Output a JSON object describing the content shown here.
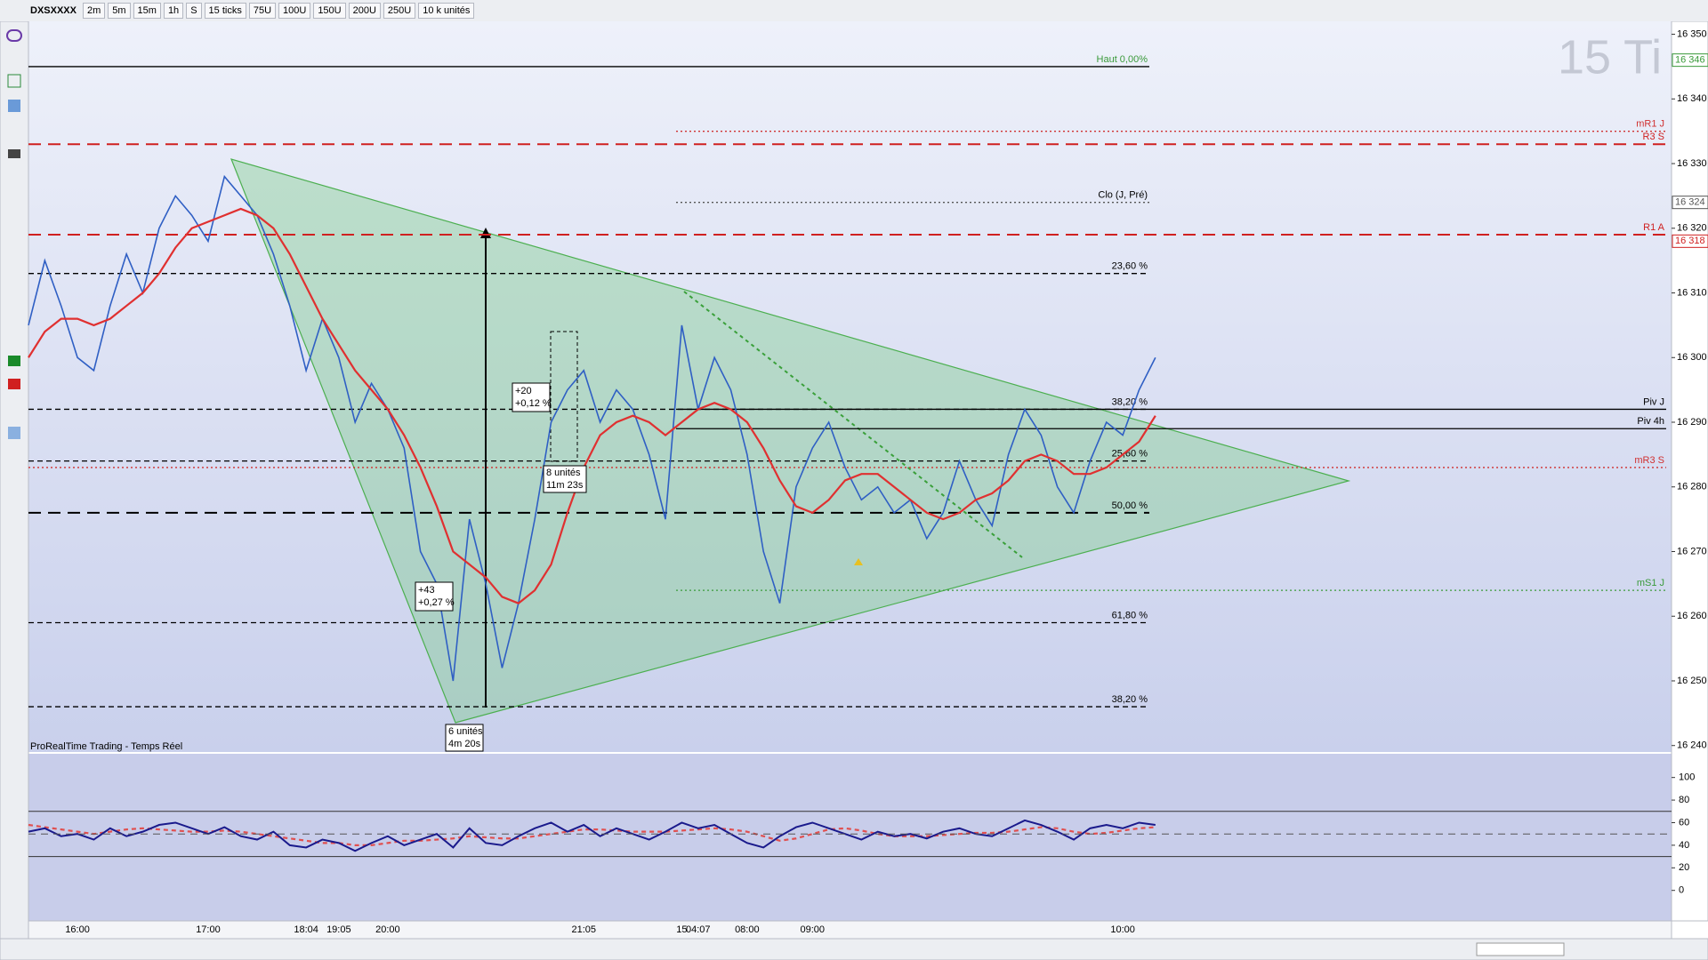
{
  "toolbar": {
    "symbol": "DXSXXXX",
    "timeframes": [
      "2m",
      "5m",
      "15m",
      "1h",
      "S"
    ],
    "ticks": "15 ticks",
    "units": [
      "75U",
      "100U",
      "150U",
      "200U",
      "250U"
    ],
    "volume": "10 k unités"
  },
  "chart_data": {
    "type": "line",
    "watermark": "15 Ti",
    "source": "ProRealTime Trading - Temps Réel",
    "categories": [
      null,
      null,
      null,
      "16:00",
      null,
      null,
      null,
      null,
      null,
      null,
      null,
      "17:00",
      null,
      null,
      null,
      null,
      null,
      "18:04",
      null,
      "19:05",
      null,
      null,
      "20:00",
      null,
      null,
      null,
      null,
      null,
      null,
      null,
      null,
      null,
      null,
      null,
      "21:05",
      null,
      null,
      null,
      null,
      null,
      "15",
      "04:07",
      null,
      null,
      "08:00",
      null,
      null,
      null,
      "09:00",
      null,
      null,
      null,
      null,
      null,
      null,
      null,
      null,
      null,
      null,
      null,
      null,
      null,
      null,
      null,
      null,
      null,
      null,
      "10:00",
      null,
      null
    ],
    "series": [
      {
        "color": "#2f5fc4",
        "values": [
          16305,
          16315,
          16308,
          16300,
          16298,
          16308,
          16316,
          16310,
          16320,
          16325,
          16322,
          16318,
          16328,
          16325,
          16322,
          16316,
          16308,
          16298,
          16306,
          16300,
          16290,
          16296,
          16292,
          16286,
          16270,
          16265,
          16250,
          16275,
          16265,
          16252,
          16262,
          16275,
          16290,
          16295,
          16298,
          16290,
          16295,
          16292,
          16285,
          16275,
          16305,
          16292,
          16300,
          16295,
          16285,
          16270,
          16262,
          16280,
          16286,
          16290,
          16283,
          16278,
          16280,
          16276,
          16278,
          16272,
          16276,
          16284,
          16278,
          16274,
          16285,
          16292,
          16288,
          16280,
          16276,
          16284,
          16290,
          16288,
          16295,
          16300
        ]
      },
      {
        "color": "#e03030",
        "values": [
          16300,
          16304,
          16306,
          16306,
          16305,
          16306,
          16308,
          16310,
          16313,
          16317,
          16320,
          16321,
          16322,
          16323,
          16322,
          16320,
          16316,
          16311,
          16306,
          16302,
          16298,
          16295,
          16292,
          16288,
          16283,
          16277,
          16270,
          16268,
          16266,
          16263,
          16262,
          16264,
          16268,
          16276,
          16283,
          16288,
          16290,
          16291,
          16290,
          16288,
          16290,
          16292,
          16293,
          16292,
          16290,
          16286,
          16281,
          16277,
          16276,
          16278,
          16281,
          16282,
          16282,
          16280,
          16278,
          16276,
          16275,
          16276,
          16278,
          16279,
          16281,
          16284,
          16285,
          16284,
          16282,
          16282,
          16283,
          16285,
          16287,
          16291
        ]
      }
    ],
    "ylim": [
      16239,
      16352
    ],
    "yticks": [
      {
        "value": 16350,
        "label": "16 350"
      },
      {
        "value": 16340,
        "label": "16 340"
      },
      {
        "value": 16330,
        "label": "16 330"
      },
      {
        "value": 16320,
        "label": "16 320"
      },
      {
        "value": 16310,
        "label": "16 310"
      },
      {
        "value": 16300,
        "label": "16 300"
      },
      {
        "value": 16290,
        "label": "16 290"
      },
      {
        "value": 16280,
        "label": "16 280"
      },
      {
        "value": 16270,
        "label": "16 270"
      },
      {
        "value": 16260,
        "label": "16 260"
      },
      {
        "value": 16250,
        "label": "16 250"
      },
      {
        "value": 16240,
        "label": "16 240"
      }
    ],
    "levels": [
      {
        "label": "Haut 0,00%",
        "value": 16345,
        "color": "#000000",
        "label_color": "#3a9a3a",
        "style": "solid",
        "kind": "fib"
      },
      {
        "label": "23,60 %",
        "value": 16313,
        "color": "#000000",
        "label_color": "#000000",
        "style": "dashed",
        "kind": "fib"
      },
      {
        "label": "38,20 %",
        "value": 16292,
        "color": "#000000",
        "label_color": "#000000",
        "style": "dashed",
        "kind": "fib"
      },
      {
        "label": "25,60 %",
        "value": 16284,
        "color": "#000000",
        "label_color": "#000000",
        "style": "dashed",
        "kind": "fib"
      },
      {
        "label": "50,00 %",
        "value": 16276,
        "color": "#000000",
        "label_color": "#000000",
        "style": "long-dashed",
        "kind": "fib"
      },
      {
        "label": "61,80 %",
        "value": 16259,
        "color": "#000000",
        "label_color": "#000000",
        "style": "dashed",
        "kind": "fib"
      },
      {
        "label": "38,20 %",
        "value": 16246,
        "color": "#000000",
        "label_color": "#000000",
        "style": "dashed",
        "kind": "fib"
      },
      {
        "label": "Clo (J, Pré)",
        "value": 16324,
        "color": "#555555",
        "label_color": "#000000",
        "style": "dotted",
        "kind": "session"
      },
      {
        "label": "mR1 J",
        "value": 16335,
        "color": "#d03030",
        "label_color": "#d03030",
        "style": "dotted",
        "kind": "pivot"
      },
      {
        "label": "R3 S",
        "value": 16333,
        "color": "#d02020",
        "label_color": "#d02020",
        "style": "long-dashed",
        "kind": "band"
      },
      {
        "label": "R1 A",
        "value": 16319,
        "color": "#d02020",
        "label_color": "#d02020",
        "style": "long-dashed",
        "kind": "band"
      },
      {
        "label": "Piv J",
        "value": 16292,
        "color": "#000000",
        "label_color": "#000000",
        "style": "solid",
        "kind": "pivot"
      },
      {
        "label": "Piv 4h",
        "value": 16289,
        "color": "#000000",
        "label_color": "#000000",
        "style": "solid",
        "kind": "pivot"
      },
      {
        "label": "mR3 S",
        "value": 16283,
        "color": "#d03030",
        "label_color": "#d03030",
        "style": "dotted",
        "kind": "band"
      },
      {
        "label": "mS1 J",
        "value": 16264,
        "color": "#3a9a3a",
        "label_color": "#3a9a3a",
        "style": "dotted",
        "kind": "pivot"
      }
    ],
    "axis_markers": [
      {
        "value": 16346,
        "label": "16 346",
        "color": "#3a9a3a"
      },
      {
        "value": 16324,
        "label": "16 324",
        "color": "#555555"
      },
      {
        "value": 16318,
        "label": "16 318",
        "color": "#d02020"
      }
    ],
    "annotations": [
      [
        "+20",
        "+0,12 %"
      ],
      [
        "8 unités",
        "11m 23s"
      ],
      [
        "+43",
        "+0,27 %"
      ],
      [
        "6 unités",
        "4m 20s"
      ]
    ],
    "indicator": {
      "color": "#1a1a8c",
      "signal_color": "#e05050",
      "values": [
        52,
        55,
        48,
        50,
        45,
        55,
        48,
        52,
        58,
        60,
        55,
        50,
        56,
        48,
        45,
        52,
        40,
        38,
        45,
        42,
        35,
        42,
        48,
        40,
        45,
        50,
        38,
        55,
        42,
        40,
        48,
        55,
        60,
        52,
        58,
        48,
        55,
        50,
        45,
        52,
        60,
        55,
        58,
        50,
        42,
        38,
        48,
        56,
        60,
        55,
        50,
        45,
        52,
        48,
        50,
        46,
        52,
        55,
        50,
        48,
        55,
        62,
        58,
        52,
        45,
        55,
        58,
        55,
        60,
        58
      ],
      "signal": [
        58,
        56,
        54,
        52,
        50,
        52,
        54,
        55,
        54,
        53,
        52,
        52,
        53,
        52,
        50,
        48,
        46,
        44,
        42,
        42,
        40,
        40,
        42,
        44,
        44,
        45,
        46,
        48,
        47,
        46,
        46,
        48,
        50,
        52,
        54,
        54,
        53,
        52,
        52,
        52,
        53,
        54,
        55,
        54,
        52,
        48,
        44,
        46,
        50,
        54,
        55,
        53,
        50,
        48,
        48,
        48,
        49,
        50,
        51,
        51,
        52,
        54,
        56,
        55,
        52,
        50,
        51,
        53,
        55,
        56
      ],
      "ylim": [
        -27,
        121
      ],
      "yticks": [
        100,
        80,
        60,
        40,
        20,
        0
      ],
      "bands": [
        30,
        70
      ],
      "midline": 50
    }
  }
}
